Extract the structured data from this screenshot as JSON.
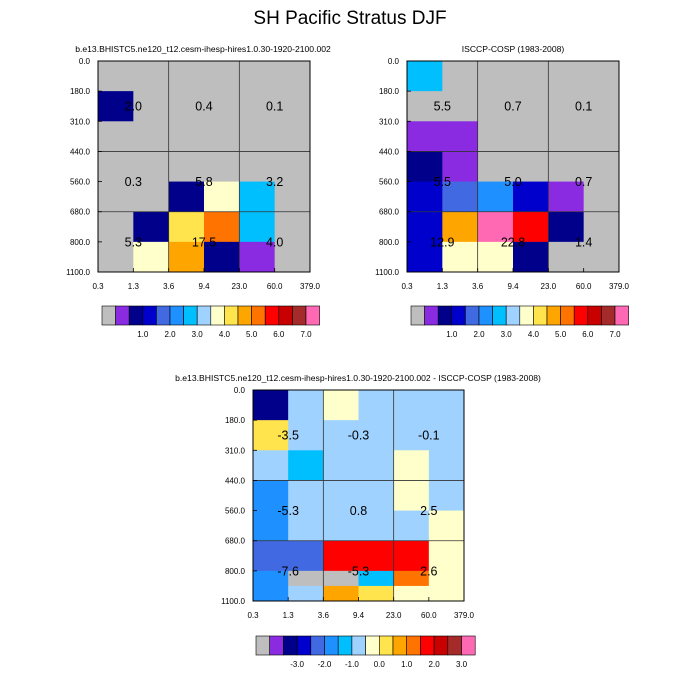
{
  "title": "SH Pacific Stratus DJF",
  "colors": {
    "missing": "#bebebe",
    "palette13": [
      "#8a2be2",
      "#00008b",
      "#0000cd",
      "#4169e1",
      "#1e90ff",
      "#00bfff",
      "#a0d2ff",
      "#ffffcc",
      "#ffe44d",
      "#ffa500",
      "#ff7300",
      "#ff0000",
      "#c80000",
      "#a52a2a",
      "#ff69b4"
    ],
    "palette_diff": [
      "#8a2be2",
      "#00008b",
      "#0000cd",
      "#4169e1",
      "#1e90ff",
      "#00bfff",
      "#a0d2ff",
      "#ffffcc",
      "#ffe44d",
      "#ffa500",
      "#ff7300",
      "#ff0000",
      "#c80000",
      "#a52a2a",
      "#ff69b4"
    ]
  },
  "chart_data": [
    {
      "type": "heatmap",
      "title": "b.e13.BHISTC5.ne120_t12.cesm-ihesp-hires1.0.30-1920-2100.002",
      "x_tick_labels": [
        "0.3",
        "1.3",
        "3.6",
        "9.4",
        "23.0",
        "60.0",
        "379.0"
      ],
      "y_tick_labels": [
        "0.0",
        "180.0",
        "310.0",
        "440.0",
        "560.0",
        "680.0",
        "800.0",
        "1100.0"
      ],
      "cells": [
        [
          -1,
          -1,
          -1,
          -1,
          -1,
          -1
        ],
        [
          1,
          -1,
          -1,
          -1,
          -1,
          -1
        ],
        [
          -1,
          -1,
          -1,
          -1,
          -1,
          -1
        ],
        [
          -1,
          -1,
          -1,
          -1,
          -1,
          -1
        ],
        [
          -1,
          -1,
          1,
          7,
          5,
          -1
        ],
        [
          -1,
          1,
          8,
          10,
          5,
          -1
        ],
        [
          -1,
          7,
          9,
          1,
          0,
          -1
        ]
      ],
      "group_labels": [
        {
          "row": 0,
          "col": 0,
          "text": "2.0"
        },
        {
          "row": 0,
          "col": 1,
          "text": "0.4"
        },
        {
          "row": 0,
          "col": 2,
          "text": "0.1"
        },
        {
          "row": 1,
          "col": 0,
          "text": "0.3"
        },
        {
          "row": 1,
          "col": 1,
          "text": "5.8"
        },
        {
          "row": 1,
          "col": 2,
          "text": "3.2"
        },
        {
          "row": 2,
          "col": 0,
          "text": "5.3"
        },
        {
          "row": 2,
          "col": 1,
          "text": "17.5"
        },
        {
          "row": 2,
          "col": 2,
          "text": "4.0"
        }
      ],
      "colorbar": {
        "labels": [
          {
            "after": 2,
            "text": "1.0"
          },
          {
            "after": 4,
            "text": "2.0"
          },
          {
            "after": 6,
            "text": "3.0"
          },
          {
            "after": 8,
            "text": "4.0"
          },
          {
            "after": 10,
            "text": "5.0"
          },
          {
            "after": 12,
            "text": "6.0"
          },
          {
            "after": 14,
            "text": "7.0"
          }
        ]
      }
    },
    {
      "type": "heatmap",
      "title": "ISCCP-COSP (1983-2008)",
      "x_tick_labels": [
        "0.3",
        "1.3",
        "3.6",
        "9.4",
        "23.0",
        "60.0",
        "379.0"
      ],
      "y_tick_labels": [
        "0.0",
        "180.0",
        "310.0",
        "440.0",
        "560.0",
        "680.0",
        "800.0",
        "1100.0"
      ],
      "cells": [
        [
          5,
          -1,
          -1,
          -1,
          -1,
          -1
        ],
        [
          -1,
          -1,
          -1,
          -1,
          -1,
          -1
        ],
        [
          0,
          0,
          -1,
          -1,
          -1,
          -1
        ],
        [
          1,
          0,
          -1,
          -1,
          -1,
          -1
        ],
        [
          2,
          3,
          4,
          2,
          0,
          -1
        ],
        [
          2,
          9,
          14,
          11,
          1,
          -1
        ],
        [
          2,
          7,
          7,
          1,
          -1,
          -1
        ]
      ],
      "group_labels": [
        {
          "row": 0,
          "col": 0,
          "text": "5.5"
        },
        {
          "row": 0,
          "col": 1,
          "text": "0.7"
        },
        {
          "row": 0,
          "col": 2,
          "text": "0.1"
        },
        {
          "row": 1,
          "col": 0,
          "text": "5.5"
        },
        {
          "row": 1,
          "col": 1,
          "text": "5.0"
        },
        {
          "row": 1,
          "col": 2,
          "text": "0.7"
        },
        {
          "row": 2,
          "col": 0,
          "text": "12.9"
        },
        {
          "row": 2,
          "col": 1,
          "text": "22.8"
        },
        {
          "row": 2,
          "col": 2,
          "text": "1.4"
        }
      ],
      "colorbar": {
        "labels": [
          {
            "after": 2,
            "text": "1.0"
          },
          {
            "after": 4,
            "text": "2.0"
          },
          {
            "after": 6,
            "text": "3.0"
          },
          {
            "after": 8,
            "text": "4.0"
          },
          {
            "after": 10,
            "text": "5.0"
          },
          {
            "after": 12,
            "text": "6.0"
          },
          {
            "after": 14,
            "text": "7.0"
          }
        ]
      }
    },
    {
      "type": "heatmap",
      "title": "b.e13.BHISTC5.ne120_t12.cesm-ihesp-hires1.0.30-1920-2100.002 - ISCCP-COSP (1983-2008)",
      "x_tick_labels": [
        "0.3",
        "1.3",
        "3.6",
        "9.4",
        "23.0",
        "60.0",
        "379.0"
      ],
      "y_tick_labels": [
        "0.0",
        "180.0",
        "310.0",
        "440.0",
        "560.0",
        "680.0",
        "800.0",
        "1100.0"
      ],
      "cells": [
        [
          1,
          6,
          7,
          6,
          6,
          6
        ],
        [
          8,
          6,
          6,
          6,
          6,
          6
        ],
        [
          6,
          5,
          6,
          6,
          7,
          6
        ],
        [
          4,
          6,
          6,
          6,
          7,
          6
        ],
        [
          4,
          6,
          6,
          6,
          6,
          7
        ],
        [
          3,
          3,
          11,
          11,
          11,
          7
        ],
        [
          4,
          -1,
          -1,
          5,
          10,
          7
        ],
        [
          4,
          6,
          9,
          8,
          7,
          7
        ]
      ],
      "row_edges": [
        0,
        1,
        2,
        3,
        4,
        5,
        6,
        6.5,
        7
      ],
      "group_labels": [
        {
          "row": 0,
          "col": 0,
          "text": "-3.5"
        },
        {
          "row": 0,
          "col": 1,
          "text": "-0.3"
        },
        {
          "row": 0,
          "col": 2,
          "text": "-0.1"
        },
        {
          "row": 1,
          "col": 0,
          "text": "-5.3"
        },
        {
          "row": 1,
          "col": 1,
          "text": "0.8"
        },
        {
          "row": 1,
          "col": 2,
          "text": "2.5"
        },
        {
          "row": 2,
          "col": 0,
          "text": "-7.6"
        },
        {
          "row": 2,
          "col": 1,
          "text": "-5.3"
        },
        {
          "row": 2,
          "col": 2,
          "text": "2.6"
        }
      ],
      "colorbar": {
        "labels": [
          {
            "after": 2,
            "text": "-3.0"
          },
          {
            "after": 4,
            "text": "-2.0"
          },
          {
            "after": 6,
            "text": "-1.0"
          },
          {
            "after": 8,
            "text": "0.0"
          },
          {
            "after": 10,
            "text": "1.0"
          },
          {
            "after": 12,
            "text": "2.0"
          },
          {
            "after": 14,
            "text": "3.0"
          }
        ]
      }
    }
  ]
}
